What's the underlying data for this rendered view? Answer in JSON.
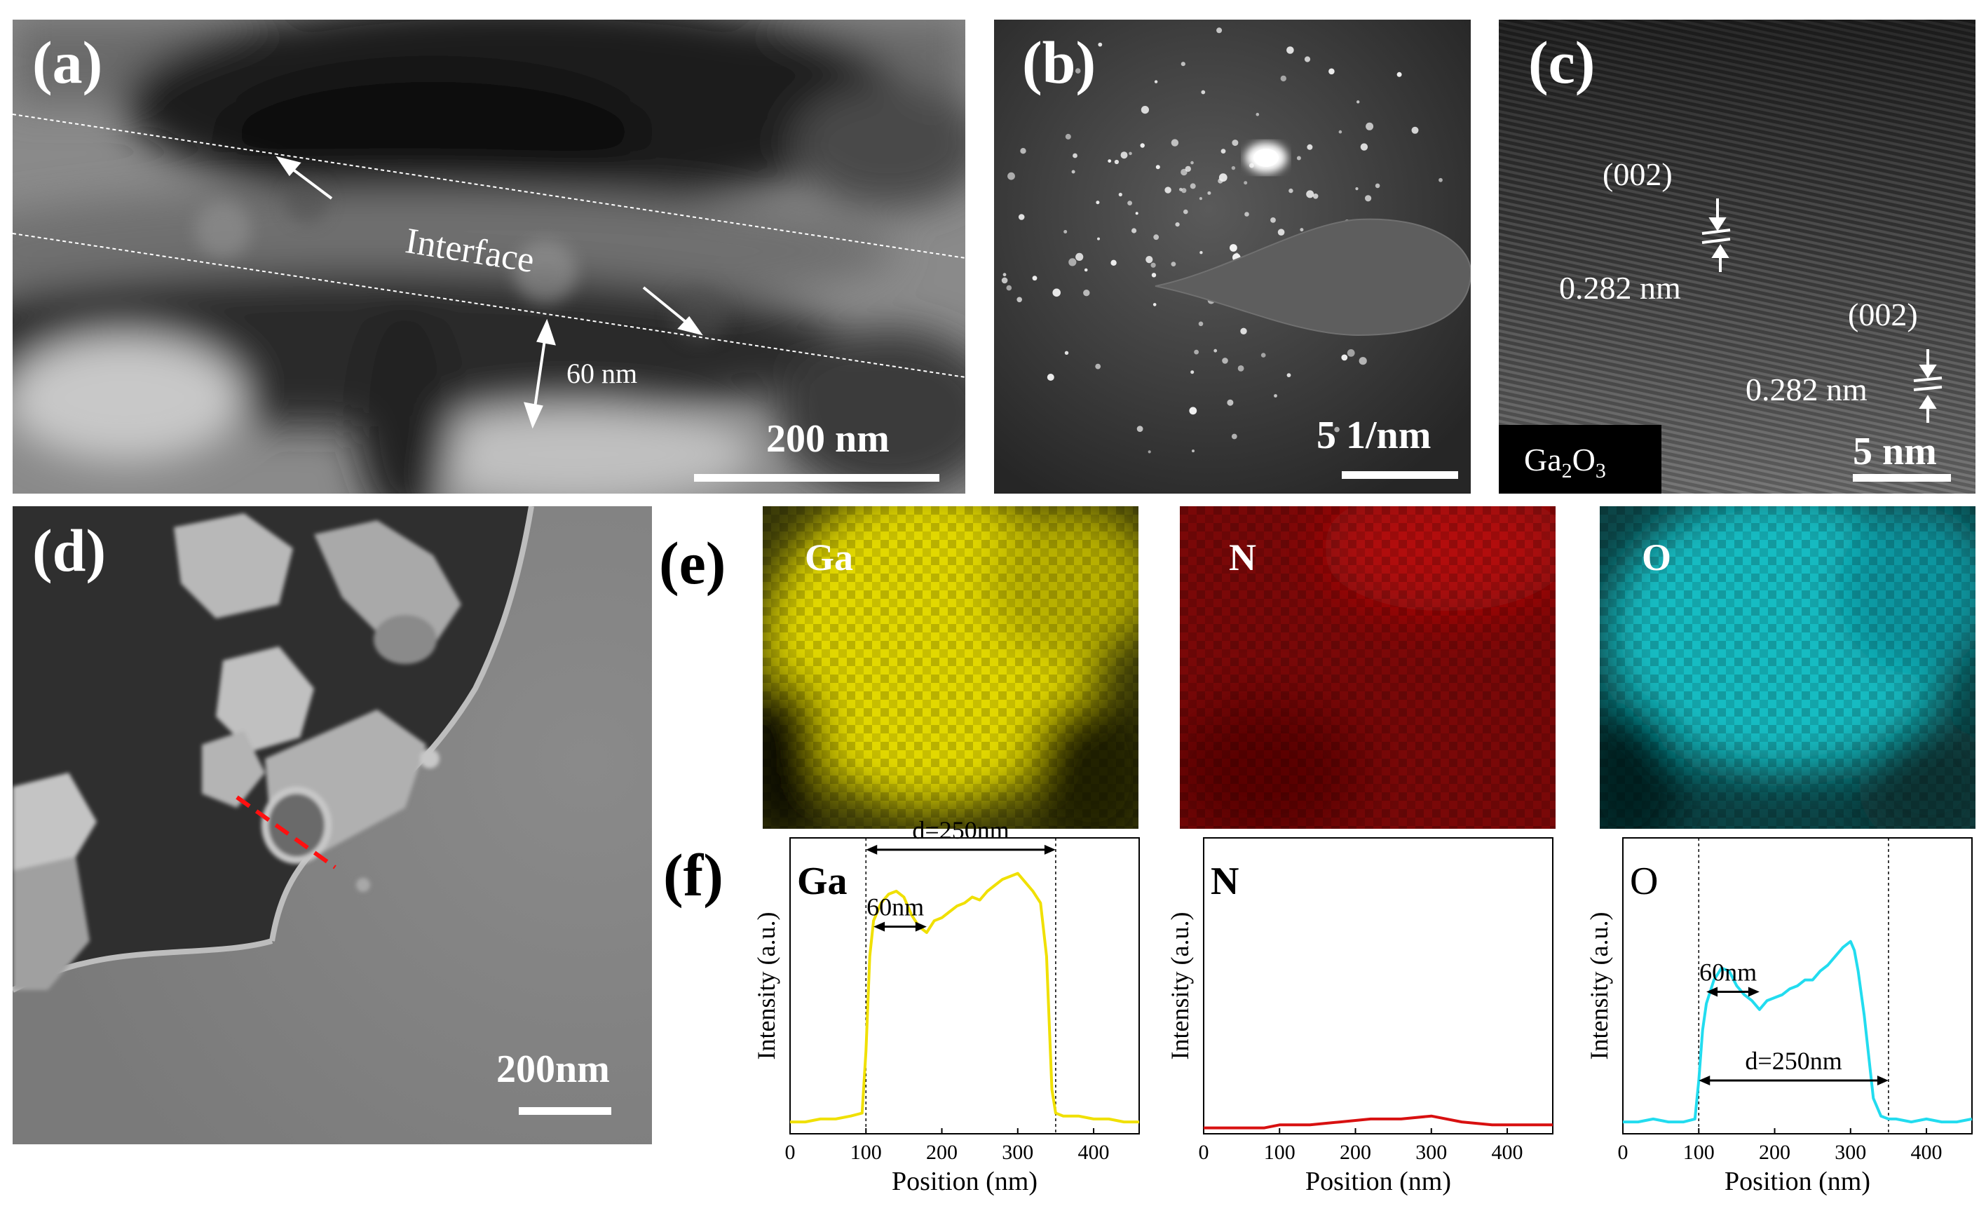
{
  "figure": {
    "panel_a": {
      "label": "(a)",
      "annotation_interface": "Interface",
      "annotation_width": "60 nm",
      "scale_bar": "200 nm"
    },
    "panel_b": {
      "label": "(b)",
      "scale_bar": "5 1/nm"
    },
    "panel_c": {
      "label": "(c)",
      "plane_1": "(002)",
      "spacing_1": "0.282 nm",
      "plane_2": "(002)",
      "spacing_2": "0.282 nm",
      "phase_main": "Ga",
      "phase_sub_2": "2",
      "phase_o": "O",
      "phase_sub_3": "3",
      "scale_bar": "5 nm"
    },
    "panel_d": {
      "label": "(d)",
      "scale_bar": "200nm"
    },
    "panel_e": {
      "label": "(e)",
      "maps": [
        {
          "element": "Ga",
          "color": "#e8e000"
        },
        {
          "element": "N",
          "color": "#b00a0a"
        },
        {
          "element": "O",
          "color": "#16c2c8"
        }
      ]
    },
    "panel_f": {
      "label": "(f)"
    }
  },
  "chart_data": [
    {
      "type": "line",
      "element": "Ga",
      "color": "#f0e000",
      "xlabel": "Position (nm)",
      "ylabel": "Intensity (a.u.)",
      "xlim": [
        0,
        460
      ],
      "xticks": [
        "0",
        "100",
        "200",
        "300",
        "400"
      ],
      "markers": [
        100,
        350
      ],
      "annotations": [
        "d=250nm",
        "60nm"
      ],
      "x": [
        0,
        20,
        40,
        60,
        80,
        95,
        100,
        105,
        110,
        120,
        130,
        140,
        150,
        160,
        170,
        180,
        190,
        200,
        210,
        220,
        230,
        240,
        250,
        260,
        270,
        280,
        290,
        300,
        310,
        320,
        330,
        338,
        345,
        350,
        360,
        380,
        400,
        420,
        440,
        460
      ],
      "y": [
        0.04,
        0.04,
        0.05,
        0.05,
        0.06,
        0.07,
        0.28,
        0.6,
        0.72,
        0.78,
        0.81,
        0.82,
        0.8,
        0.74,
        0.7,
        0.68,
        0.72,
        0.73,
        0.75,
        0.77,
        0.78,
        0.8,
        0.79,
        0.82,
        0.84,
        0.86,
        0.87,
        0.88,
        0.85,
        0.82,
        0.78,
        0.6,
        0.15,
        0.07,
        0.06,
        0.06,
        0.05,
        0.05,
        0.04,
        0.04
      ]
    },
    {
      "type": "line",
      "element": "N",
      "color": "#d81010",
      "xlabel": "Position (nm)",
      "ylabel": "Intensity (a.u.)",
      "xlim": [
        0,
        460
      ],
      "xticks": [
        "0",
        "100",
        "200",
        "300",
        "400"
      ],
      "markers": [],
      "annotations": [],
      "x": [
        0,
        40,
        80,
        100,
        140,
        180,
        220,
        260,
        300,
        340,
        380,
        420,
        460
      ],
      "y": [
        0.02,
        0.02,
        0.02,
        0.03,
        0.03,
        0.04,
        0.05,
        0.05,
        0.06,
        0.04,
        0.03,
        0.03,
        0.03
      ]
    },
    {
      "type": "line",
      "element": "O",
      "color": "#22dcef",
      "xlabel": "Position (nm)",
      "ylabel": "Intensity (a.u.)",
      "xlim": [
        0,
        460
      ],
      "xticks": [
        "0",
        "100",
        "200",
        "300",
        "400"
      ],
      "markers": [
        100,
        350
      ],
      "annotations": [
        "60nm",
        "d=250nm"
      ],
      "x": [
        0,
        20,
        40,
        60,
        80,
        95,
        100,
        105,
        110,
        120,
        130,
        140,
        150,
        160,
        170,
        180,
        190,
        200,
        210,
        220,
        230,
        240,
        250,
        260,
        270,
        280,
        290,
        300,
        305,
        310,
        318,
        330,
        340,
        350,
        360,
        380,
        400,
        420,
        440,
        460
      ],
      "y": [
        0.04,
        0.04,
        0.05,
        0.04,
        0.04,
        0.05,
        0.18,
        0.35,
        0.44,
        0.52,
        0.56,
        0.55,
        0.5,
        0.47,
        0.45,
        0.42,
        0.45,
        0.46,
        0.47,
        0.49,
        0.5,
        0.52,
        0.52,
        0.55,
        0.57,
        0.6,
        0.63,
        0.65,
        0.62,
        0.55,
        0.4,
        0.12,
        0.06,
        0.05,
        0.05,
        0.04,
        0.05,
        0.04,
        0.04,
        0.05
      ]
    }
  ]
}
